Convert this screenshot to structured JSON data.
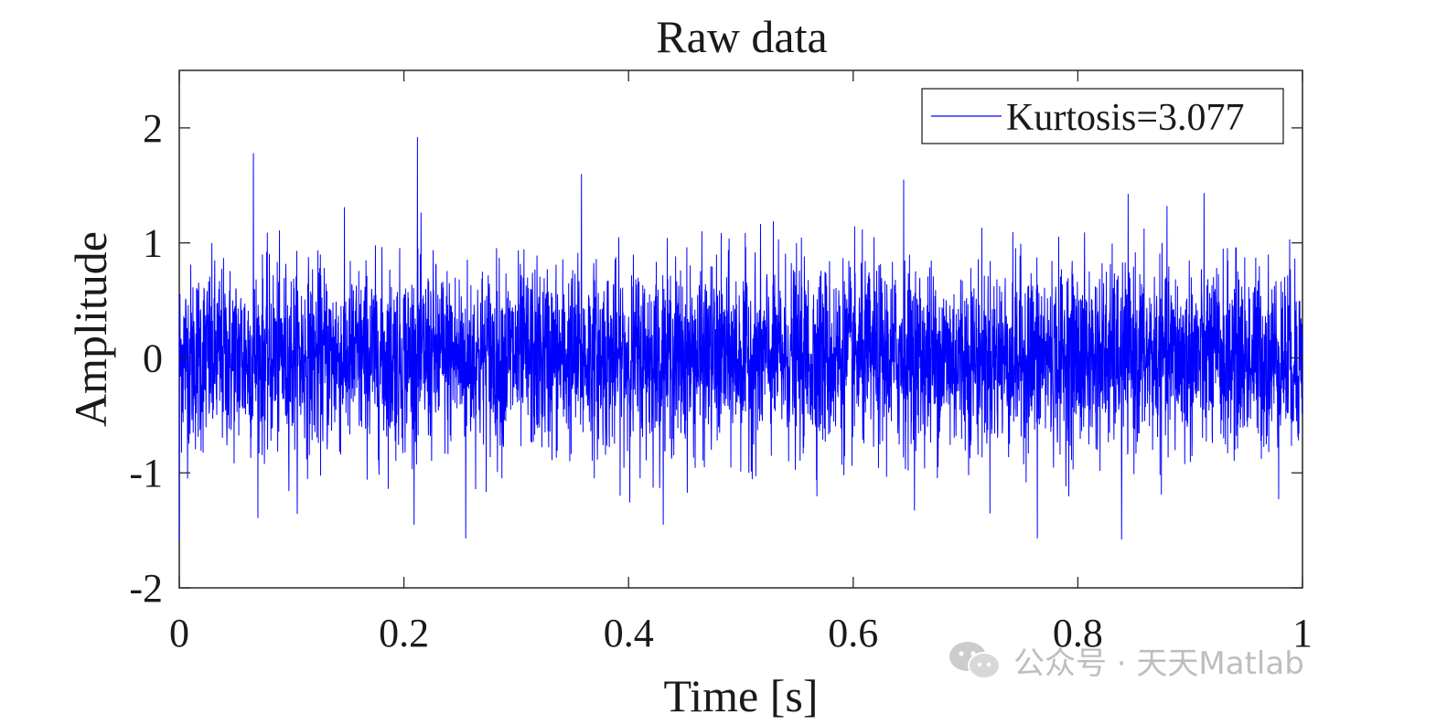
{
  "chart_data": {
    "type": "line",
    "title": "Raw data",
    "xlabel": "Time [s]",
    "ylabel": "Amplitude",
    "xlim": [
      0,
      1
    ],
    "ylim": [
      -2,
      2.5
    ],
    "xticks": [
      0,
      0.2,
      0.4,
      0.6,
      0.8,
      1
    ],
    "xtick_labels": [
      "0",
      "0.2",
      "0.4",
      "0.6",
      "0.8",
      "1"
    ],
    "yticks": [
      -2,
      -1,
      0,
      1,
      2
    ],
    "ytick_labels": [
      "-2",
      "-1",
      "0",
      "1",
      "2"
    ],
    "grid": false,
    "legend_position": "top-right",
    "series": [
      {
        "name": "Kurtosis=3.077",
        "color": "#0000ff",
        "signal": "random noise, zero mean, std ~0.4, ~5000 samples",
        "spikes": [
          {
            "x": 0.066,
            "y": 1.78
          },
          {
            "x": 0.212,
            "y": 1.92
          },
          {
            "x": 0.358,
            "y": 1.6
          },
          {
            "x": 0.645,
            "y": 1.55
          },
          {
            "x": 0.0,
            "y": -1.58
          },
          {
            "x": 0.255,
            "y": -1.57
          },
          {
            "x": 0.764,
            "y": -1.57
          },
          {
            "x": 0.839,
            "y": -1.58
          }
        ]
      }
    ]
  },
  "legend": {
    "label": "Kurtosis=3.077"
  },
  "watermark": {
    "text": "公众号 · 天天Matlab",
    "icon": "wechat-icon"
  }
}
